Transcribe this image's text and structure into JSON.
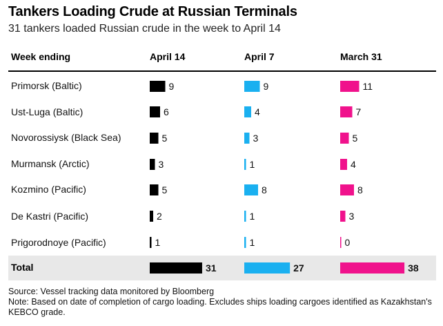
{
  "title": "Tankers Loading Crude at Russian Terminals",
  "subtitle": "31 tankers loaded Russian crude in the week to April 14",
  "footer": {
    "source": "Source: Vessel tracking data monitored by Bloomberg",
    "note": "Note: Based on date of completion of cargo loading. Excludes ships loading cargoes identified as Kazakhstan's KEBCO grade."
  },
  "chart_data": {
    "type": "table",
    "row_header": "Week ending",
    "categories": [
      "Primorsk (Baltic)",
      "Ust-Luga (Baltic)",
      "Novorossiysk (Black Sea)",
      "Murmansk (Arctic)",
      "Kozmino (Pacific)",
      "De Kastri (Pacific)",
      "Prigorodnoye (Pacific)"
    ],
    "total_label": "Total",
    "series": [
      {
        "name": "April 14",
        "color": "#000000",
        "values": [
          9,
          6,
          5,
          3,
          5,
          2,
          1
        ],
        "total": 31
      },
      {
        "name": "April 7",
        "color": "#1ab0f0",
        "values": [
          9,
          4,
          3,
          1,
          8,
          1,
          1
        ],
        "total": 27
      },
      {
        "name": "March 31",
        "color": "#f0128c",
        "values": [
          11,
          7,
          5,
          4,
          8,
          3,
          0
        ],
        "total": 38
      }
    ]
  }
}
